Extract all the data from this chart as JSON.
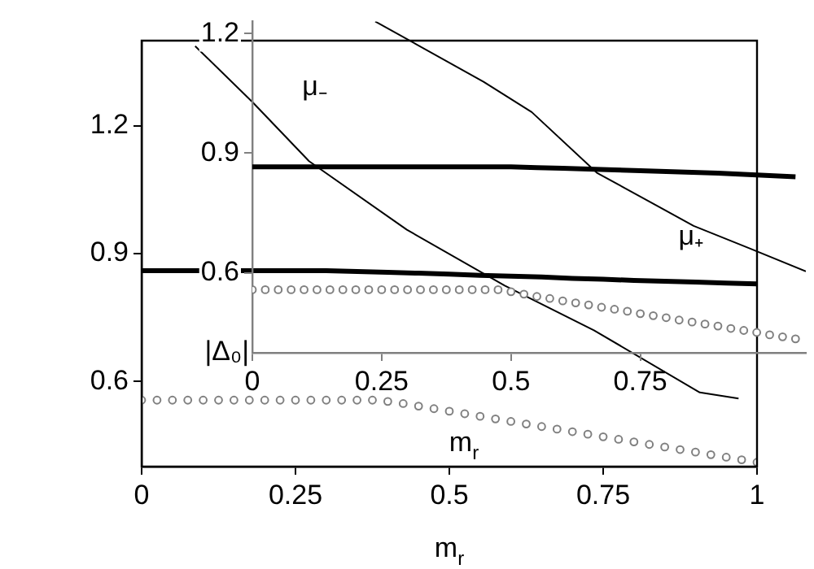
{
  "chart_data": [
    {
      "type": "line",
      "xlabel": "m$_{r}$",
      "xlim": [
        0,
        1
      ],
      "ylim": [
        0.4,
        1.4
      ],
      "xticks": [
        0,
        0.25,
        0.5,
        0.75,
        1
      ],
      "yticks": [
        0.6,
        0.9,
        1.2
      ],
      "grid": false,
      "legend": false,
      "series": [
        {
          "type": "line",
          "color": "#000000",
          "x": [
            0,
            0.05,
            0.2,
            0.25,
            0.3,
            0.35,
            0.4,
            0.45,
            0.5,
            0.55,
            0.6,
            0.65,
            0.7,
            0.75,
            0.8,
            0.85,
            0.9,
            0.95,
            1
          ],
          "values": [
            0.86,
            0.86,
            0.86,
            0.86,
            0.86,
            0.858,
            0.856,
            0.854,
            0.852,
            0.849,
            0.847,
            0.845,
            0.842,
            0.84,
            0.837,
            0.835,
            0.833,
            0.831,
            0.829
          ]
        },
        {
          "type": "scatter",
          "marker": "circle",
          "color": "#808080",
          "x": [
            0,
            0.025,
            0.05,
            0.075,
            0.1,
            0.125,
            0.15,
            0.175,
            0.2,
            0.225,
            0.25,
            0.275,
            0.3,
            0.325,
            0.35,
            0.375,
            0.4,
            0.425,
            0.45,
            0.475,
            0.5,
            0.525,
            0.55,
            0.575,
            0.6,
            0.625,
            0.65,
            0.675,
            0.7,
            0.725,
            0.75,
            0.775,
            0.8,
            0.825,
            0.85,
            0.875,
            0.9,
            0.925,
            0.95,
            0.975,
            1
          ],
          "values": [
            0.556,
            0.556,
            0.556,
            0.556,
            0.556,
            0.556,
            0.556,
            0.556,
            0.556,
            0.556,
            0.556,
            0.556,
            0.556,
            0.556,
            0.556,
            0.556,
            0.553,
            0.548,
            0.542,
            0.536,
            0.53,
            0.524,
            0.518,
            0.512,
            0.506,
            0.5,
            0.494,
            0.488,
            0.482,
            0.476,
            0.47,
            0.464,
            0.458,
            0.452,
            0.446,
            0.44,
            0.434,
            0.428,
            0.422,
            0.416,
            0.41
          ]
        },
        {
          "type": "line",
          "color": "#000000",
          "x": [
            0.087,
            0.18,
            0.272,
            0.431,
            0.59,
            0.735,
            0.907,
            0.97
          ],
          "values": [
            1.387,
            1.256,
            1.117,
            0.956,
            0.825,
            0.72,
            0.574,
            0.56
          ]
        }
      ]
    },
    {
      "type": "line",
      "xlabel": "m$_{r}$",
      "ylabel": "|Δ₀|",
      "xlim": [
        0,
        1.07
      ],
      "ylim": [
        0.4,
        1.23
      ],
      "xticks": [
        0,
        0.25,
        0.5,
        0.75
      ],
      "yticks": [
        0.6,
        0.9,
        1.2
      ],
      "grid": false,
      "legend": false,
      "annotations": [
        "μ₋",
        "μ₊"
      ],
      "series": [
        {
          "type": "line",
          "color": "#000000",
          "x": [
            0,
            0.05,
            0.1,
            0.15,
            0.2,
            0.25,
            0.3,
            0.35,
            0.4,
            0.45,
            0.5,
            0.55,
            0.6,
            0.65,
            0.7,
            0.75,
            0.8,
            0.85,
            0.9,
            0.95,
            1,
            1.05
          ],
          "values": [
            0.866,
            0.866,
            0.866,
            0.866,
            0.866,
            0.866,
            0.866,
            0.866,
            0.866,
            0.866,
            0.866,
            0.864,
            0.862,
            0.86,
            0.858,
            0.856,
            0.854,
            0.852,
            0.85,
            0.847,
            0.844,
            0.841
          ]
        },
        {
          "type": "scatter",
          "marker": "circle",
          "color": "#808080",
          "x": [
            0,
            0.025,
            0.05,
            0.075,
            0.1,
            0.125,
            0.15,
            0.175,
            0.2,
            0.225,
            0.25,
            0.275,
            0.3,
            0.325,
            0.35,
            0.375,
            0.4,
            0.425,
            0.45,
            0.475,
            0.5,
            0.525,
            0.55,
            0.575,
            0.6,
            0.625,
            0.65,
            0.675,
            0.7,
            0.725,
            0.75,
            0.775,
            0.8,
            0.825,
            0.85,
            0.875,
            0.9,
            0.925,
            0.95,
            0.975,
            1,
            1.025,
            1.05
          ],
          "values": [
            0.558,
            0.558,
            0.558,
            0.558,
            0.558,
            0.558,
            0.558,
            0.558,
            0.558,
            0.558,
            0.558,
            0.558,
            0.558,
            0.558,
            0.558,
            0.558,
            0.558,
            0.558,
            0.558,
            0.558,
            0.553,
            0.547,
            0.541,
            0.536,
            0.53,
            0.525,
            0.52,
            0.514,
            0.509,
            0.504,
            0.498,
            0.493,
            0.488,
            0.482,
            0.477,
            0.472,
            0.467,
            0.461,
            0.456,
            0.451,
            0.445,
            0.44,
            0.435
          ]
        },
        {
          "type": "line",
          "color": "#000000",
          "x": [
            0.2375,
            0.447,
            0.54,
            0.666,
            0.853,
            0.9625,
            1.07
          ],
          "values": [
            1.23,
            1.079,
            1.003,
            0.851,
            0.718,
            0.661,
            0.604
          ]
        }
      ]
    }
  ]
}
